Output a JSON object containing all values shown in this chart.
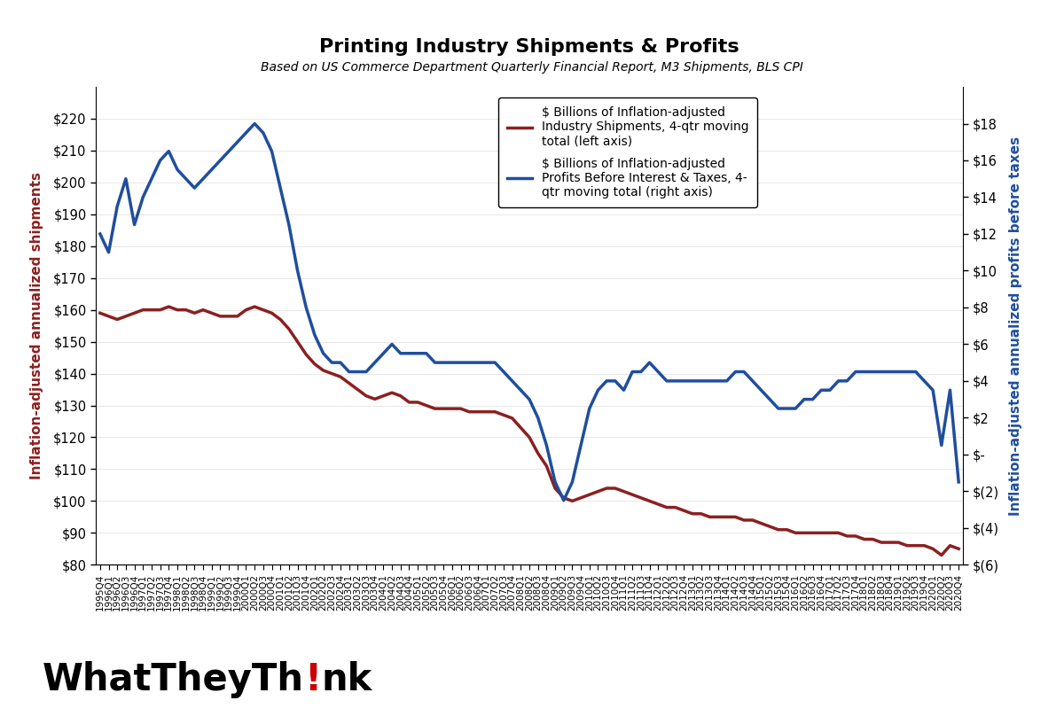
{
  "title": "Printing Industry Shipments & Profits",
  "subtitle": "Based on US Commerce Department Quarterly Financial Report, M3 Shipments, BLS CPI",
  "left_ylabel": "Inflation-adjusted annualized shipments",
  "right_ylabel": "Inflation-adjusted annualized profits before taxes",
  "legend_line1": "$ Billions of Inflation-adjusted\nIndustry Shipments, 4-qtr moving\ntotal (left axis)",
  "legend_line2": "$ Billions of Inflation-adjusted\nProfits Before Interest & Taxes, 4-\nqtr moving total (right axis)",
  "shipments_color": "#8B2020",
  "profits_color": "#1F4E9E",
  "background_color": "#FFFFFF",
  "left_ylim": [
    80,
    230
  ],
  "right_ylim": [
    -6,
    20
  ],
  "left_yticks": [
    80,
    90,
    100,
    110,
    120,
    130,
    140,
    150,
    160,
    170,
    180,
    190,
    200,
    210,
    220
  ],
  "right_yticks": [
    -6,
    -4,
    -2,
    0,
    2,
    4,
    6,
    8,
    10,
    12,
    14,
    16,
    18
  ],
  "quarters": [
    "1995Q4",
    "1996Q1",
    "1996Q2",
    "1996Q3",
    "1996Q4",
    "1997Q1",
    "1997Q2",
    "1997Q3",
    "1997Q4",
    "1998Q1",
    "1998Q2",
    "1998Q3",
    "1998Q4",
    "1999Q1",
    "1999Q2",
    "1999Q3",
    "1999Q4",
    "2000Q1",
    "2000Q2",
    "2000Q3",
    "2000Q4",
    "2001Q1",
    "2001Q2",
    "2001Q3",
    "2001Q4",
    "2002Q1",
    "2002Q2",
    "2002Q3",
    "2002Q4",
    "2003Q1",
    "2003Q2",
    "2003Q3",
    "2003Q4",
    "2004Q1",
    "2004Q2",
    "2004Q3",
    "2004Q4",
    "2005Q1",
    "2005Q2",
    "2005Q3",
    "2005Q4",
    "2006Q1",
    "2006Q2",
    "2006Q3",
    "2006Q4",
    "2007Q1",
    "2007Q2",
    "2007Q3",
    "2007Q4",
    "2008Q1",
    "2008Q2",
    "2008Q3",
    "2008Q4",
    "2009Q1",
    "2009Q2",
    "2009Q3",
    "2009Q4",
    "2010Q1",
    "2010Q2",
    "2010Q3",
    "2010Q4",
    "2011Q1",
    "2011Q2",
    "2011Q3",
    "2011Q4",
    "2012Q1",
    "2012Q2",
    "2012Q3",
    "2012Q4",
    "2013Q1",
    "2013Q2",
    "2013Q3",
    "2013Q4",
    "2014Q1",
    "2014Q2",
    "2014Q3",
    "2014Q4",
    "2015Q1",
    "2015Q2",
    "2015Q3",
    "2015Q4",
    "2016Q1",
    "2016Q2",
    "2016Q3",
    "2016Q4",
    "2017Q1",
    "2017Q2",
    "2017Q3",
    "2017Q4",
    "2018Q1",
    "2018Q2",
    "2018Q3",
    "2018Q4",
    "2019Q1",
    "2019Q2",
    "2019Q3",
    "2019Q4",
    "2020Q1",
    "2020Q2",
    "2020Q3",
    "2020Q4"
  ],
  "shipments": [
    159,
    158,
    157,
    158,
    159,
    160,
    160,
    160,
    161,
    160,
    160,
    159,
    160,
    159,
    158,
    158,
    158,
    160,
    161,
    160,
    159,
    157,
    154,
    150,
    146,
    143,
    141,
    140,
    139,
    137,
    135,
    133,
    132,
    133,
    134,
    133,
    131,
    131,
    130,
    129,
    129,
    129,
    129,
    128,
    128,
    128,
    128,
    127,
    126,
    123,
    120,
    115,
    111,
    104,
    101,
    100,
    101,
    102,
    103,
    104,
    104,
    103,
    102,
    101,
    100,
    99,
    98,
    98,
    97,
    96,
    96,
    95,
    95,
    95,
    95,
    94,
    94,
    93,
    92,
    91,
    91,
    90,
    90,
    90,
    90,
    90,
    90,
    89,
    89,
    88,
    88,
    87,
    87,
    87,
    86,
    86,
    86,
    85,
    83,
    86,
    85
  ],
  "profits": [
    12.0,
    11.0,
    13.5,
    15.0,
    12.5,
    14.0,
    15.0,
    16.0,
    16.5,
    15.5,
    15.0,
    14.5,
    15.0,
    15.5,
    16.0,
    16.5,
    17.0,
    17.5,
    18.0,
    17.5,
    16.5,
    14.5,
    12.5,
    10.0,
    8.0,
    6.5,
    5.5,
    5.0,
    5.0,
    4.5,
    4.5,
    4.5,
    5.0,
    5.5,
    6.0,
    5.5,
    5.5,
    5.5,
    5.5,
    5.0,
    5.0,
    5.0,
    5.0,
    5.0,
    5.0,
    5.0,
    5.0,
    4.5,
    4.0,
    3.5,
    3.0,
    2.0,
    0.5,
    -1.5,
    -2.5,
    -1.5,
    0.5,
    2.5,
    3.5,
    4.0,
    4.0,
    3.5,
    4.5,
    4.5,
    5.0,
    4.5,
    4.0,
    4.0,
    4.0,
    4.0,
    4.0,
    4.0,
    4.0,
    4.0,
    4.5,
    4.5,
    4.0,
    3.5,
    3.0,
    2.5,
    2.5,
    2.5,
    3.0,
    3.0,
    3.5,
    3.5,
    4.0,
    4.0,
    4.5,
    4.5,
    4.5,
    4.5,
    4.5,
    4.5,
    4.5,
    4.5,
    4.0,
    3.5,
    0.5,
    3.5,
    -1.5
  ]
}
